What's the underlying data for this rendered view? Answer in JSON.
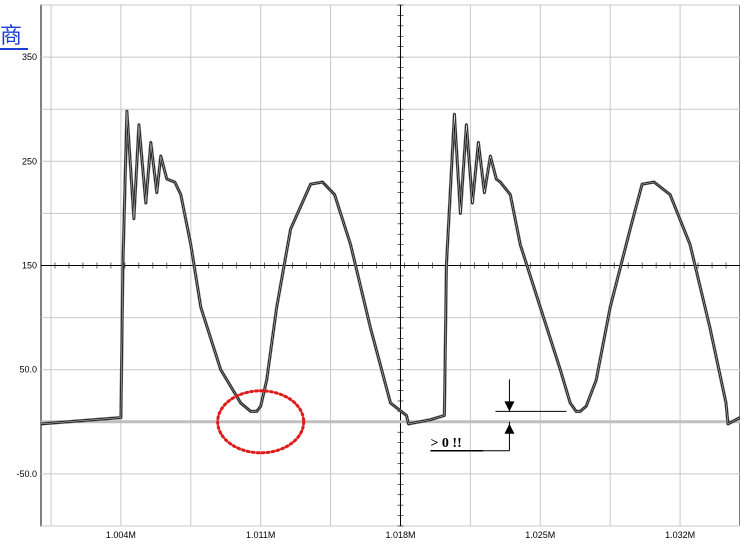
{
  "logo_text": "商",
  "annotation": "> 0 !!",
  "colors": {
    "background": "#ffffff",
    "grid": "#c8c8c8",
    "axis": "#000000",
    "curve": "#000000",
    "baseline": "#bfbfbf",
    "highlight_ring": "#e01b1b",
    "logo": "#1a3fd6"
  },
  "chart_data": {
    "type": "line",
    "title": "",
    "xlabel": "",
    "ylabel": "",
    "xlim": [
      1.0,
      1.035
    ],
    "ylim": [
      -100,
      400
    ],
    "x_ticks": [
      1.004,
      1.011,
      1.018,
      1.025,
      1.032
    ],
    "x_tick_labels": [
      "1.004M",
      "1.011M",
      "1.018M",
      "1.025M",
      "1.032M"
    ],
    "y_ticks": [
      -50,
      50,
      150,
      250,
      350
    ],
    "y_tick_labels": [
      "-50.0",
      "50.0",
      "150",
      "250",
      "350"
    ],
    "grid": true,
    "center_axes": {
      "x": 1.018,
      "y": 150
    },
    "baseline_y": 0,
    "series": [
      {
        "x": [
          1.0,
          1.004,
          1.0041,
          1.0043,
          1.00465,
          1.0049,
          1.00525,
          1.0055,
          1.0058,
          1.006,
          1.0063,
          1.0067,
          1.007,
          1.0075,
          1.008,
          1.009,
          1.01,
          1.0105,
          1.0108,
          1.011,
          1.0113,
          1.0118,
          1.0125,
          1.0135,
          1.0141,
          1.0147,
          1.0155,
          1.0165,
          1.0175,
          1.0183,
          1.0184,
          1.0195,
          1.0202,
          1.0203,
          1.0207,
          1.021,
          1.0213,
          1.0216,
          1.0219,
          1.0222,
          1.0225,
          1.0228,
          1.023,
          1.0235,
          1.024,
          1.025,
          1.026,
          1.0265,
          1.0268,
          1.027,
          1.0273,
          1.0278,
          1.0285,
          1.0295,
          1.0301,
          1.0307,
          1.0315,
          1.0325,
          1.0335,
          1.0343,
          1.0344,
          1.035
        ],
        "values": [
          -2,
          4,
          150,
          298,
          195,
          285,
          210,
          268,
          220,
          255,
          233,
          230,
          218,
          170,
          110,
          50,
          18,
          10,
          10,
          15,
          40,
          110,
          185,
          228,
          230,
          218,
          170,
          90,
          18,
          6,
          -2,
          2,
          6,
          150,
          295,
          200,
          285,
          210,
          268,
          220,
          255,
          233,
          230,
          218,
          170,
          110,
          50,
          18,
          10,
          10,
          15,
          40,
          110,
          185,
          228,
          230,
          218,
          170,
          90,
          18,
          -2,
          4
        ]
      }
    ],
    "annotations": [
      {
        "text": "> 0 !!",
        "x": 1.0195,
        "y": -24
      },
      {
        "type": "ellipse",
        "cx": 1.011,
        "cy": 0,
        "color": "#e01b1b"
      }
    ]
  }
}
